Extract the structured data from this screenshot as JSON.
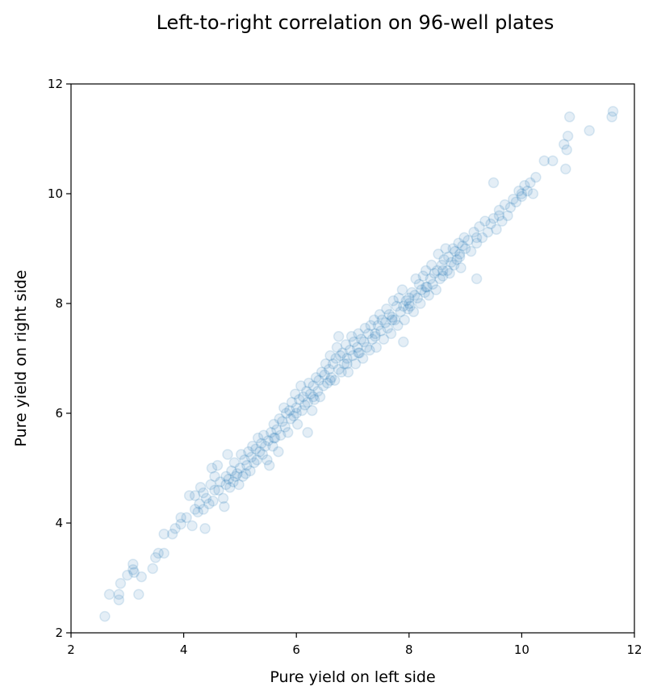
{
  "chart_data": {
    "type": "scatter",
    "title": "Left-to-right correlation on 96-well plates",
    "xlabel": "Pure yield on left side",
    "ylabel": "Pure yield on right side",
    "xlim": [
      2,
      12
    ],
    "ylim": [
      2,
      12
    ],
    "xticks": [
      "2",
      "4",
      "6",
      "8",
      "10",
      "12"
    ],
    "yticks": [
      "2",
      "4",
      "6",
      "8",
      "10",
      "12"
    ],
    "grid": false,
    "point_color": "#1f77b4",
    "point_alpha": 0.12,
    "series": [
      {
        "points": [
          [
            2.6,
            2.3
          ],
          [
            2.68,
            2.7
          ],
          [
            2.85,
            2.6
          ],
          [
            2.85,
            2.7
          ],
          [
            2.88,
            2.9
          ],
          [
            3.0,
            3.05
          ],
          [
            3.1,
            3.25
          ],
          [
            3.12,
            3.1
          ],
          [
            3.2,
            2.7
          ],
          [
            3.25,
            3.02
          ],
          [
            3.45,
            3.17
          ],
          [
            3.5,
            3.37
          ],
          [
            3.55,
            3.45
          ],
          [
            3.65,
            3.45
          ],
          [
            3.65,
            3.8
          ],
          [
            3.8,
            3.8
          ],
          [
            3.85,
            3.9
          ],
          [
            3.95,
            4.1
          ],
          [
            3.95,
            3.98
          ],
          [
            4.05,
            4.1
          ],
          [
            4.1,
            4.5
          ],
          [
            4.15,
            3.95
          ],
          [
            4.2,
            4.5
          ],
          [
            4.25,
            4.2
          ],
          [
            4.28,
            4.35
          ],
          [
            4.3,
            4.65
          ],
          [
            4.35,
            4.25
          ],
          [
            4.35,
            4.55
          ],
          [
            4.38,
            3.9
          ],
          [
            4.4,
            4.45
          ],
          [
            4.45,
            4.35
          ],
          [
            4.48,
            4.7
          ],
          [
            4.5,
            5.0
          ],
          [
            4.52,
            4.4
          ],
          [
            4.55,
            4.85
          ],
          [
            4.6,
            5.05
          ],
          [
            4.62,
            4.6
          ],
          [
            4.65,
            4.75
          ],
          [
            4.7,
            4.45
          ],
          [
            4.72,
            4.3
          ],
          [
            4.75,
            4.7
          ],
          [
            4.78,
            5.25
          ],
          [
            4.8,
            4.8
          ],
          [
            4.82,
            4.65
          ],
          [
            4.85,
            4.95
          ],
          [
            4.88,
            4.75
          ],
          [
            4.9,
            5.1
          ],
          [
            4.92,
            4.85
          ],
          [
            4.95,
            4.9
          ],
          [
            4.98,
            4.7
          ],
          [
            5.0,
            5.0
          ],
          [
            5.02,
            5.25
          ],
          [
            5.05,
            4.85
          ],
          [
            5.08,
            5.15
          ],
          [
            5.1,
            4.9
          ],
          [
            5.12,
            5.05
          ],
          [
            5.15,
            5.3
          ],
          [
            5.18,
            4.95
          ],
          [
            5.2,
            5.2
          ],
          [
            5.22,
            5.4
          ],
          [
            5.25,
            5.1
          ],
          [
            5.28,
            5.35
          ],
          [
            5.3,
            5.15
          ],
          [
            5.32,
            5.55
          ],
          [
            5.35,
            5.3
          ],
          [
            5.38,
            5.45
          ],
          [
            5.4,
            5.25
          ],
          [
            5.42,
            5.6
          ],
          [
            5.45,
            5.4
          ],
          [
            5.48,
            5.15
          ],
          [
            5.5,
            5.5
          ],
          [
            5.52,
            5.05
          ],
          [
            5.55,
            5.65
          ],
          [
            5.58,
            5.4
          ],
          [
            5.6,
            5.8
          ],
          [
            5.62,
            5.55
          ],
          [
            5.65,
            5.7
          ],
          [
            5.68,
            5.3
          ],
          [
            5.7,
            5.9
          ],
          [
            5.72,
            5.6
          ],
          [
            5.75,
            5.85
          ],
          [
            5.78,
            6.1
          ],
          [
            5.8,
            5.75
          ],
          [
            5.82,
            6.0
          ],
          [
            5.85,
            5.65
          ],
          [
            5.88,
            6.05
          ],
          [
            5.9,
            5.9
          ],
          [
            5.92,
            6.2
          ],
          [
            5.95,
            5.95
          ],
          [
            5.98,
            6.35
          ],
          [
            6.0,
            6.1
          ],
          [
            6.02,
            5.8
          ],
          [
            6.05,
            6.25
          ],
          [
            6.08,
            6.5
          ],
          [
            6.1,
            6.05
          ],
          [
            6.12,
            6.3
          ],
          [
            6.15,
            6.15
          ],
          [
            6.18,
            6.4
          ],
          [
            6.2,
            6.2
          ],
          [
            6.22,
            6.55
          ],
          [
            6.25,
            6.35
          ],
          [
            6.28,
            6.05
          ],
          [
            6.3,
            6.5
          ],
          [
            6.32,
            6.25
          ],
          [
            6.35,
            6.65
          ],
          [
            6.38,
            6.4
          ],
          [
            6.4,
            6.6
          ],
          [
            6.42,
            6.3
          ],
          [
            6.45,
            6.75
          ],
          [
            6.48,
            6.5
          ],
          [
            6.5,
            6.7
          ],
          [
            6.52,
            6.9
          ],
          [
            6.55,
            6.55
          ],
          [
            6.58,
            6.8
          ],
          [
            6.6,
            7.05
          ],
          [
            6.62,
            6.65
          ],
          [
            6.65,
            6.9
          ],
          [
            6.68,
            6.6
          ],
          [
            6.7,
            7.0
          ],
          [
            6.72,
            7.2
          ],
          [
            6.75,
            6.8
          ],
          [
            6.78,
            7.05
          ],
          [
            6.8,
            6.75
          ],
          [
            6.82,
            7.1
          ],
          [
            6.85,
            6.9
          ],
          [
            6.88,
            7.25
          ],
          [
            6.9,
            7.0
          ],
          [
            6.92,
            6.75
          ],
          [
            6.95,
            7.15
          ],
          [
            6.98,
            7.4
          ],
          [
            7.0,
            7.05
          ],
          [
            7.02,
            7.3
          ],
          [
            7.05,
            6.9
          ],
          [
            7.08,
            7.2
          ],
          [
            7.1,
            7.45
          ],
          [
            7.12,
            7.1
          ],
          [
            7.15,
            7.35
          ],
          [
            7.18,
            7.0
          ],
          [
            7.2,
            7.3
          ],
          [
            7.22,
            7.55
          ],
          [
            7.25,
            7.2
          ],
          [
            7.28,
            7.45
          ],
          [
            7.3,
            7.15
          ],
          [
            7.32,
            7.6
          ],
          [
            7.35,
            7.35
          ],
          [
            7.38,
            7.7
          ],
          [
            7.4,
            7.45
          ],
          [
            7.42,
            7.2
          ],
          [
            7.45,
            7.6
          ],
          [
            7.48,
            7.8
          ],
          [
            7.5,
            7.5
          ],
          [
            7.52,
            7.7
          ],
          [
            7.55,
            7.35
          ],
          [
            7.58,
            7.65
          ],
          [
            7.6,
            7.9
          ],
          [
            7.62,
            7.55
          ],
          [
            7.65,
            7.8
          ],
          [
            7.68,
            7.45
          ],
          [
            7.7,
            7.75
          ],
          [
            7.72,
            8.05
          ],
          [
            7.75,
            7.7
          ],
          [
            7.78,
            7.95
          ],
          [
            7.8,
            7.6
          ],
          [
            7.82,
            8.1
          ],
          [
            7.85,
            7.85
          ],
          [
            7.88,
            8.25
          ],
          [
            7.9,
            7.95
          ],
          [
            7.92,
            7.7
          ],
          [
            7.95,
            8.05
          ],
          [
            7.98,
            7.9
          ],
          [
            8.0,
            8.1
          ],
          [
            8.02,
            7.95
          ],
          [
            8.05,
            8.2
          ],
          [
            8.08,
            7.85
          ],
          [
            8.1,
            8.15
          ],
          [
            8.12,
            8.45
          ],
          [
            8.15,
            8.1
          ],
          [
            8.18,
            8.35
          ],
          [
            8.2,
            8.0
          ],
          [
            8.22,
            8.25
          ],
          [
            8.25,
            8.5
          ],
          [
            8.28,
            8.2
          ],
          [
            8.3,
            8.6
          ],
          [
            8.32,
            8.3
          ],
          [
            8.35,
            8.15
          ],
          [
            8.38,
            8.45
          ],
          [
            8.4,
            8.7
          ],
          [
            8.42,
            8.35
          ],
          [
            8.45,
            8.55
          ],
          [
            8.48,
            8.25
          ],
          [
            8.5,
            8.6
          ],
          [
            8.52,
            8.9
          ],
          [
            8.55,
            8.45
          ],
          [
            8.58,
            8.7
          ],
          [
            8.6,
            8.5
          ],
          [
            8.62,
            8.8
          ],
          [
            8.65,
            9.0
          ],
          [
            8.68,
            8.6
          ],
          [
            8.7,
            8.85
          ],
          [
            8.72,
            8.55
          ],
          [
            8.75,
            8.75
          ],
          [
            8.78,
            9.0
          ],
          [
            8.8,
            8.7
          ],
          [
            8.82,
            8.95
          ],
          [
            8.85,
            8.8
          ],
          [
            8.88,
            9.1
          ],
          [
            8.9,
            8.85
          ],
          [
            8.92,
            8.65
          ],
          [
            8.95,
            9.05
          ],
          [
            8.98,
            9.2
          ],
          [
            9.0,
            9.0
          ],
          [
            9.05,
            9.15
          ],
          [
            9.1,
            8.95
          ],
          [
            9.15,
            9.3
          ],
          [
            9.2,
            9.1
          ],
          [
            9.25,
            9.4
          ],
          [
            9.3,
            9.2
          ],
          [
            9.35,
            9.5
          ],
          [
            9.4,
            9.3
          ],
          [
            9.45,
            9.45
          ],
          [
            9.5,
            9.55
          ],
          [
            9.55,
            9.35
          ],
          [
            9.6,
            9.7
          ],
          [
            9.65,
            9.5
          ],
          [
            9.7,
            9.8
          ],
          [
            9.75,
            9.6
          ],
          [
            9.8,
            9.75
          ],
          [
            9.85,
            9.9
          ],
          [
            9.9,
            9.85
          ],
          [
            9.95,
            10.05
          ],
          [
            10.0,
            9.95
          ],
          [
            10.05,
            10.15
          ],
          [
            10.1,
            10.05
          ],
          [
            10.15,
            10.2
          ],
          [
            10.2,
            10.0
          ],
          [
            10.25,
            10.3
          ],
          [
            10.4,
            10.6
          ],
          [
            10.55,
            10.6
          ],
          [
            10.75,
            10.9
          ],
          [
            10.78,
            10.45
          ],
          [
            10.8,
            10.8
          ],
          [
            10.82,
            11.05
          ],
          [
            10.85,
            11.4
          ],
          [
            11.2,
            11.15
          ],
          [
            11.6,
            11.4
          ],
          [
            11.62,
            11.5
          ],
          [
            9.2,
            8.45
          ],
          [
            9.5,
            10.2
          ],
          [
            3.1,
            3.15
          ],
          [
            4.2,
            4.25
          ],
          [
            4.55,
            4.6
          ],
          [
            4.75,
            4.85
          ],
          [
            5.6,
            5.55
          ],
          [
            6.0,
            6.0
          ],
          [
            6.3,
            6.3
          ],
          [
            6.6,
            6.6
          ],
          [
            6.9,
            6.9
          ],
          [
            7.1,
            7.1
          ],
          [
            7.4,
            7.4
          ],
          [
            7.7,
            7.7
          ],
          [
            8.0,
            8.0
          ],
          [
            8.3,
            8.3
          ],
          [
            8.6,
            8.6
          ],
          [
            8.9,
            8.9
          ],
          [
            9.2,
            9.2
          ],
          [
            9.6,
            9.6
          ],
          [
            10.0,
            10.0
          ],
          [
            6.75,
            7.4
          ],
          [
            7.9,
            7.3
          ],
          [
            6.2,
            5.65
          ]
        ]
      }
    ]
  }
}
